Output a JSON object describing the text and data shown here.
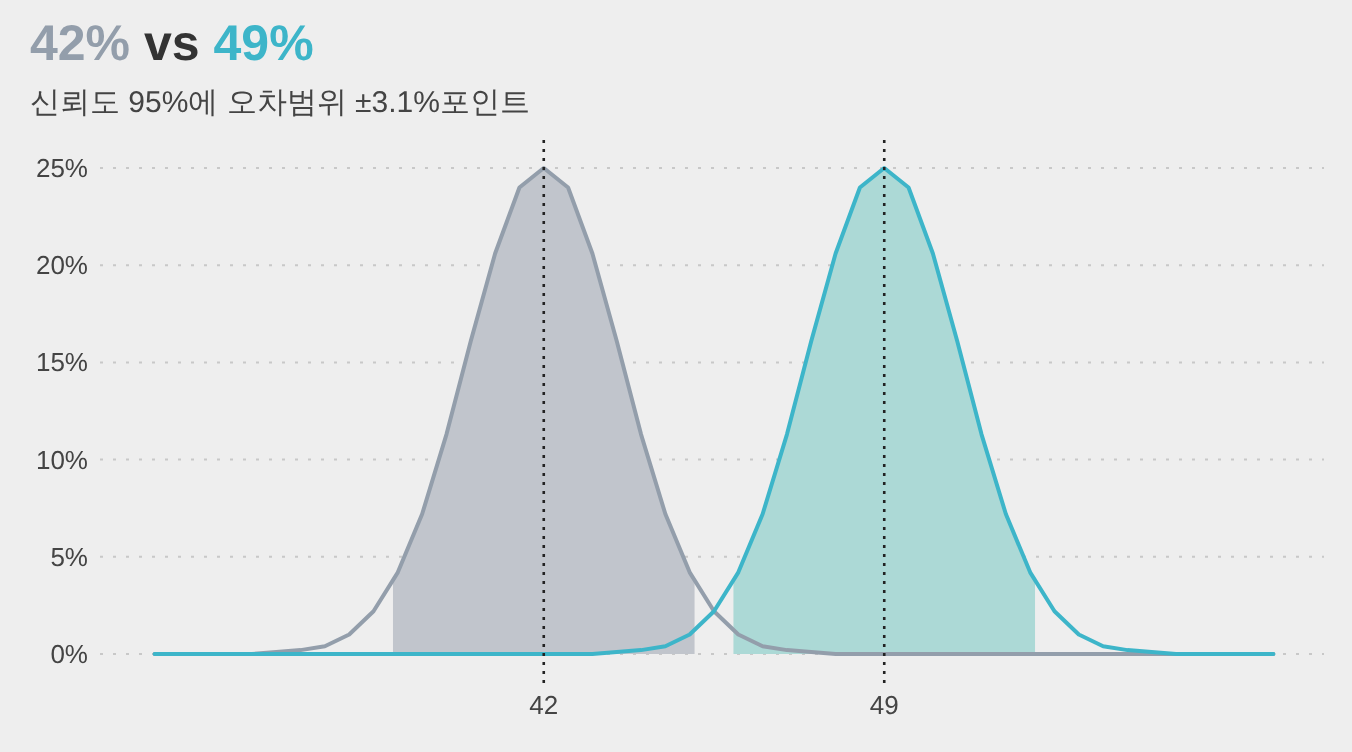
{
  "chart_data": {
    "type": "line",
    "title": "42% vs 49%",
    "subtitle": "신뢰도 95%에 오차범위 ±3.1%포인트",
    "x": [
      34,
      34.5,
      35,
      35.5,
      36,
      36.5,
      37,
      37.5,
      38,
      38.5,
      39,
      39.5,
      40,
      40.5,
      41,
      41.5,
      42,
      42.5,
      43,
      43.5,
      44,
      44.5,
      45,
      45.5,
      46,
      46.5,
      47,
      47.5,
      48,
      48.5,
      49,
      49.5,
      50,
      50.5,
      51,
      51.5,
      52,
      52.5,
      53,
      53.5,
      54,
      54.5,
      55,
      55.5,
      56,
      56.5,
      57
    ],
    "series": [
      {
        "type": "area",
        "color": "#c1c5cc",
        "x": [
          38.9,
          39,
          39.5,
          40,
          40.5,
          41,
          41.5,
          42,
          42.5,
          43,
          43.5,
          44,
          44.5,
          45,
          45.1
        ],
        "values": [
          3.7,
          4.2,
          7.2,
          11.3,
          16.1,
          20.6,
          24.0,
          25,
          24.0,
          20.6,
          16.1,
          11.3,
          7.2,
          4.2,
          3.7
        ]
      },
      {
        "type": "area",
        "color": "#acd9d6",
        "x": [
          45.9,
          46,
          46.5,
          47,
          47.5,
          48,
          48.5,
          49,
          49.5,
          50,
          50.5,
          51,
          51.5,
          52,
          52.1
        ],
        "values": [
          3.7,
          4.2,
          7.2,
          11.3,
          16.1,
          20.6,
          24.0,
          25,
          24.0,
          20.6,
          16.1,
          11.3,
          7.2,
          4.2,
          3.7
        ]
      },
      {
        "color": "#939eab",
        "values": [
          0,
          0,
          0,
          0,
          0,
          0.1,
          0.2,
          0.4,
          1.0,
          2.2,
          4.2,
          7.2,
          11.3,
          16.1,
          20.6,
          24.0,
          25,
          24.0,
          20.6,
          16.1,
          11.3,
          7.2,
          4.2,
          2.2,
          1.0,
          0.4,
          0.2,
          0.1,
          0,
          0,
          0,
          0,
          0,
          0,
          0,
          0,
          0,
          0,
          0,
          0,
          0,
          0,
          0,
          0,
          0,
          0,
          0
        ]
      },
      {
        "color": "#3db5c9",
        "values": [
          0,
          0,
          0,
          0,
          0,
          0,
          0,
          0,
          0,
          0,
          0,
          0,
          0,
          0,
          0,
          0,
          0,
          0,
          0,
          0.1,
          0.2,
          0.4,
          1.0,
          2.2,
          4.2,
          7.2,
          11.3,
          16.1,
          20.6,
          24.0,
          25,
          24.0,
          20.6,
          16.1,
          11.3,
          7.2,
          4.2,
          2.2,
          1.0,
          0.4,
          0.2,
          0.1,
          0,
          0,
          0,
          0,
          0
        ]
      }
    ],
    "xlim": [
      33,
      58
    ],
    "xticks": [
      42,
      49
    ],
    "ylim": [
      0,
      25
    ],
    "yticks": [
      {
        "value": 0,
        "label": "0%"
      },
      {
        "value": 5,
        "label": "5%"
      },
      {
        "value": 10,
        "label": "10%"
      },
      {
        "value": 15,
        "label": "15%"
      },
      {
        "value": 20,
        "label": "20%"
      },
      {
        "value": 25,
        "label": "25%"
      }
    ],
    "grid": "y",
    "ref_lines": [
      {
        "axis": "x",
        "value": 42,
        "line_style": "dotted",
        "color": "#222222"
      },
      {
        "axis": "x",
        "value": 49,
        "line_style": "dotted",
        "color": "#222222"
      }
    ]
  }
}
